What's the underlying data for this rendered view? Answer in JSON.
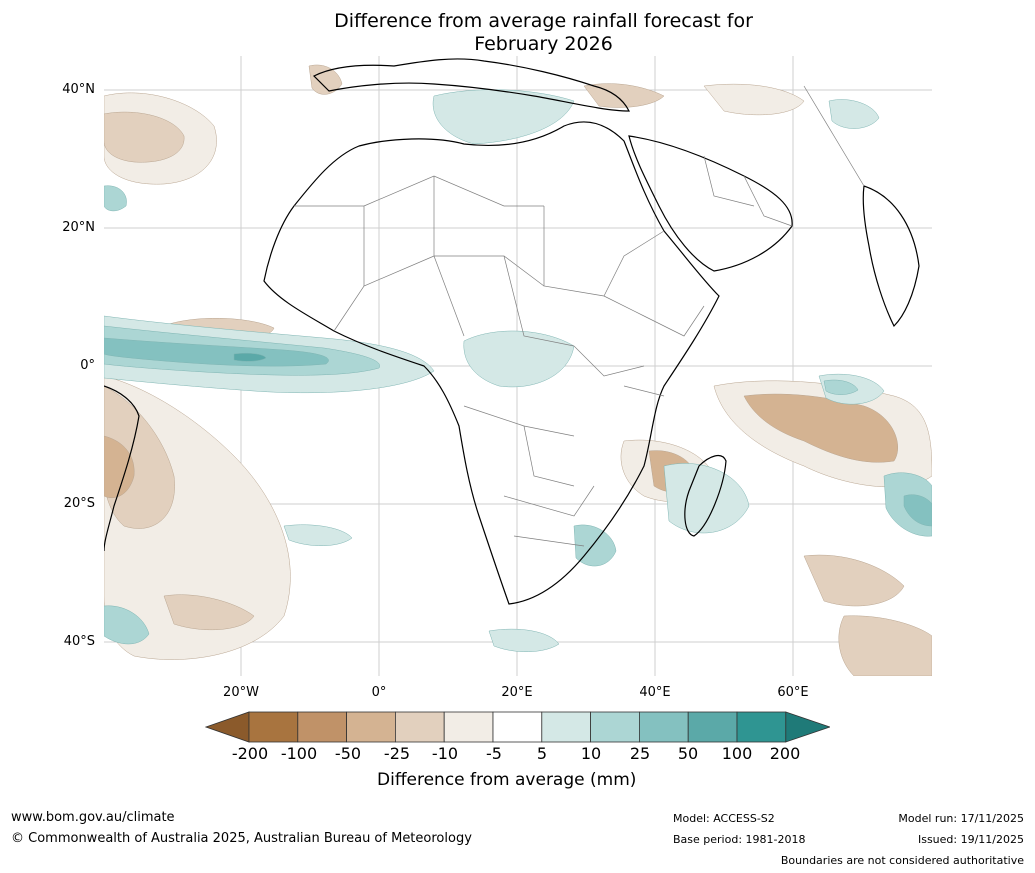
{
  "title": {
    "line1": "Difference from average rainfall forecast for",
    "line2": "February 2026"
  },
  "axes": {
    "lat_labels": [
      "40°N",
      "20°N",
      "0°",
      "20°S",
      "40°S"
    ],
    "lon_labels": [
      "20°W",
      "0°",
      "20°E",
      "40°E",
      "60°E"
    ]
  },
  "map_colors": {
    "ocean": "#ffffff",
    "land": "#ffffff",
    "coast": "#000000",
    "border": "#808080",
    "grid": "#cccccc"
  },
  "colorbar": {
    "labels": [
      "-200",
      "-100",
      "-50",
      "-25",
      "-10",
      "-5",
      "5",
      "10",
      "25",
      "50",
      "100",
      "200"
    ],
    "colors": [
      "#8b5a2b",
      "#a8743f",
      "#c09268",
      "#d4b392",
      "#e2d0be",
      "#f2ede6",
      "#ffffff",
      "#d4e8e6",
      "#acd6d4",
      "#84c1c0",
      "#5ba9a8",
      "#2f9592",
      "#1f7a78"
    ],
    "title": "Difference from average (mm)"
  },
  "footer": {
    "website": "www.bom.gov.au/climate",
    "copyright": "© Commonwealth of Australia 2025, Australian Bureau of Meteorology",
    "model": "Model: ACCESS-S2",
    "base_period": "Base period: 1981-2018",
    "model_run": "Model run: 17/11/2025",
    "issued": "Issued: 19/11/2025",
    "disclaimer": "Boundaries are not considered authoritative"
  }
}
